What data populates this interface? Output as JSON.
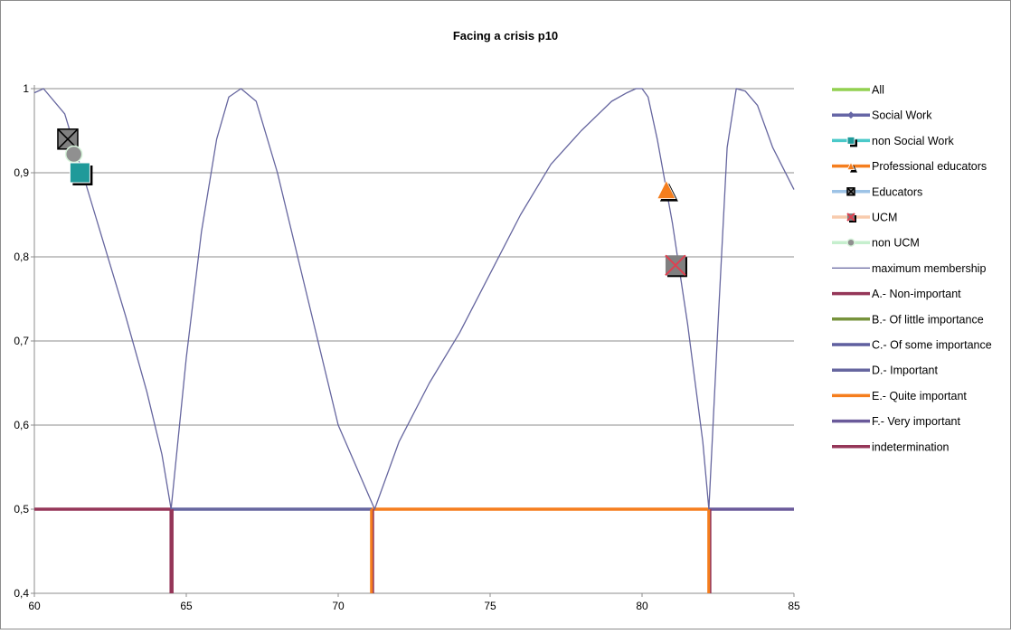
{
  "chart_data": {
    "type": "line",
    "title": "Facing a crisis p10",
    "xlabel": "",
    "ylabel": "",
    "xlim": [
      60,
      85
    ],
    "ylim": [
      0.4,
      1
    ],
    "x_ticks": [
      "60",
      "65",
      "70",
      "75",
      "80",
      "85"
    ],
    "y_ticks": [
      "0,4",
      "0,5",
      "0,6",
      "0,7",
      "0,8",
      "0,9",
      "1"
    ],
    "grid": "horizontal",
    "legend_position": "right",
    "points": [
      {
        "name": "All",
        "x": null,
        "y": null
      },
      {
        "name": "Social Work",
        "x": null,
        "y": null
      },
      {
        "name": "non Social Work",
        "x": 61.5,
        "y": 0.9
      },
      {
        "name": "Professional educators",
        "x": 80.8,
        "y": 0.88
      },
      {
        "name": "Educators",
        "x": 61.1,
        "y": 0.94
      },
      {
        "name": "UCM",
        "x": 81.1,
        "y": 0.79
      },
      {
        "name": "non UCM",
        "x": 61.3,
        "y": 0.922
      }
    ],
    "maximum_membership": {
      "name": "maximum membership",
      "x": [
        60,
        60.3,
        61,
        62,
        63,
        63.7,
        64.2,
        64.5,
        65,
        65.5,
        66,
        66.4,
        66.8,
        67.3,
        68,
        69,
        70,
        70.6,
        71.2,
        72,
        73,
        74,
        75,
        76,
        77,
        78,
        79,
        79.5,
        79.8,
        80,
        80.2,
        80.5,
        81,
        81.5,
        82,
        82.2,
        82.5,
        82.8,
        83.1,
        83.4,
        83.8,
        84.3,
        85
      ],
      "y": [
        0.995,
        1.0,
        0.97,
        0.85,
        0.73,
        0.64,
        0.565,
        0.5,
        0.68,
        0.83,
        0.94,
        0.99,
        1.0,
        0.985,
        0.9,
        0.75,
        0.6,
        0.55,
        0.5,
        0.58,
        0.65,
        0.71,
        0.78,
        0.85,
        0.91,
        0.95,
        0.985,
        0.995,
        1.0,
        1.0,
        0.99,
        0.94,
        0.84,
        0.72,
        0.58,
        0.5,
        0.72,
        0.93,
        1.0,
        0.997,
        0.98,
        0.93,
        0.88
      ]
    },
    "categories": [
      {
        "name": "A.- Non-important",
        "color": "#953658",
        "segments": [
          [
            60,
            64.5
          ]
        ]
      },
      {
        "name": "B.- Of little importance",
        "color": "#77933C",
        "segments": []
      },
      {
        "name": "C.- Of some importance",
        "color": "#5F5F9F",
        "segments": []
      },
      {
        "name": "D.- Important",
        "color": "#66669F",
        "segments": [
          [
            64.5,
            71.1
          ]
        ]
      },
      {
        "name": "E.- Quite important",
        "color": "#F57E1E",
        "segments": [
          [
            71.1,
            82.2
          ]
        ]
      },
      {
        "name": "F.- Very important",
        "color": "#6A5A9A",
        "segments": [
          [
            82.2,
            85
          ]
        ]
      },
      {
        "name": "indetermination",
        "color": "#953658",
        "verticals": [
          64.5,
          71.1,
          82.2
        ]
      }
    ],
    "baseline_y": 0.5,
    "legend": [
      {
        "label": "All",
        "line_color": "#92D050",
        "marker": "none",
        "marker_color": ""
      },
      {
        "label": "Social Work",
        "line_color": "#6666A6",
        "marker": "diamond",
        "marker_color": "#6666A6"
      },
      {
        "label": "non Social Work",
        "line_color": "#4BC9C9",
        "marker": "square",
        "marker_color": "#1F9A9A"
      },
      {
        "label": "Professional educators",
        "line_color": "#F57E1E",
        "marker": "triangle",
        "marker_color": "#F57E1E"
      },
      {
        "label": "Educators",
        "line_color": "#9DC3E6",
        "marker": "xbox",
        "marker_color": "#808080"
      },
      {
        "label": "UCM",
        "line_color": "#F8CBAD",
        "marker": "xstar",
        "marker_color": "#E04050"
      },
      {
        "label": "non UCM",
        "line_color": "#C6EFCE",
        "marker": "circle",
        "marker_color": "#909090"
      },
      {
        "label": "maximum membership",
        "line_color": "#66669F",
        "marker": "thin",
        "marker_color": ""
      },
      {
        "label": "A.- Non-important",
        "line_color": "#953658",
        "marker": "none",
        "marker_color": ""
      },
      {
        "label": "B.- Of little importance",
        "line_color": "#77933C",
        "marker": "none",
        "marker_color": ""
      },
      {
        "label": "C.- Of some importance",
        "line_color": "#5F5F9F",
        "marker": "none",
        "marker_color": ""
      },
      {
        "label": "D.- Important",
        "line_color": "#66669F",
        "marker": "none",
        "marker_color": ""
      },
      {
        "label": "E.- Quite important",
        "line_color": "#F57E1E",
        "marker": "none",
        "marker_color": ""
      },
      {
        "label": "F.- Very important",
        "line_color": "#6A5A9A",
        "marker": "none",
        "marker_color": ""
      },
      {
        "label": "indetermination",
        "line_color": "#953658",
        "marker": "none",
        "marker_color": ""
      }
    ]
  }
}
